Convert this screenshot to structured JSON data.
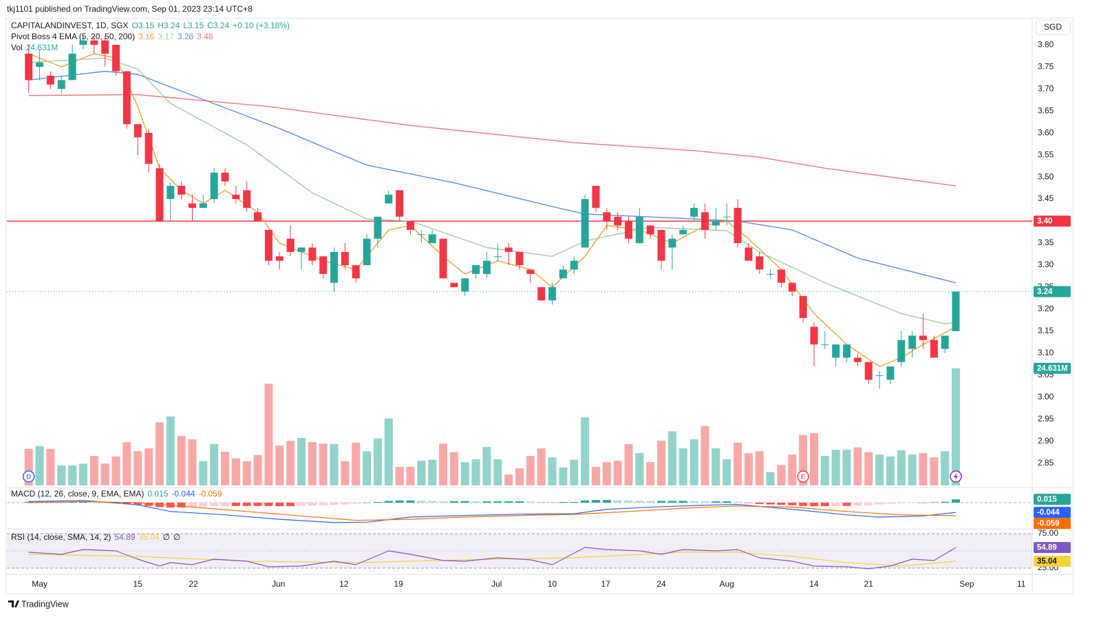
{
  "chart_data": {
    "type": "candlestick",
    "header": "tkj1101 published on TradingView.com, Sep 01, 2023 23:14 UTC+8",
    "title": "CAPITALANDINVEST, 1D, SGX",
    "ohlc_legend": [
      "O3.15",
      "H3.24",
      "L3.15",
      "C3.24",
      "+0.10 (+3.18%)"
    ],
    "currency": "SGD",
    "footer": "TradingView",
    "up_color": "#26a69a",
    "down_color": "#f23645",
    "x": [
      0,
      1,
      2,
      3,
      4,
      5,
      6,
      7,
      8,
      9,
      10,
      11,
      12,
      13,
      14,
      15,
      16,
      17,
      18,
      19,
      20,
      21,
      22,
      23,
      24,
      25,
      26,
      27,
      28,
      29,
      30,
      31,
      32,
      33,
      34,
      35,
      36,
      37,
      38,
      39,
      40,
      41,
      42,
      43,
      44,
      45,
      46,
      47,
      48,
      49,
      50,
      51,
      52,
      53,
      54,
      55,
      56,
      57,
      58,
      59,
      60,
      61,
      62,
      63,
      64,
      65,
      66,
      67,
      68,
      69,
      70,
      71,
      72,
      73,
      74,
      75,
      76,
      77,
      78,
      79,
      80,
      81,
      82,
      83,
      84,
      85
    ],
    "open": [
      3.78,
      3.75,
      3.73,
      3.7,
      3.72,
      3.8,
      3.81,
      3.81,
      3.8,
      3.74,
      3.62,
      3.6,
      3.52,
      3.45,
      3.48,
      3.44,
      3.43,
      3.45,
      3.51,
      3.46,
      3.47,
      3.42,
      3.38,
      3.32,
      3.36,
      3.33,
      3.34,
      3.32,
      3.26,
      3.33,
      3.3,
      3.3,
      3.36,
      3.44,
      3.47,
      3.4,
      3.37,
      3.35,
      3.36,
      3.26,
      3.24,
      3.28,
      3.28,
      3.32,
      3.34,
      3.33,
      3.29,
      3.25,
      3.22,
      3.27,
      3.29,
      3.34,
      3.48,
      3.42,
      3.41,
      3.4,
      3.35,
      3.39,
      3.38,
      3.34,
      3.37,
      3.41,
      3.42,
      3.39,
      3.41,
      3.43,
      3.34,
      3.32,
      3.28,
      3.29,
      3.26,
      3.23,
      3.16,
      3.12,
      3.09,
      3.09,
      3.09,
      3.08,
      3.05,
      3.04,
      3.08,
      3.11,
      3.14,
      3.13,
      3.11,
      3.15
    ],
    "high": [
      3.8,
      3.79,
      3.74,
      3.73,
      3.8,
      3.82,
      3.82,
      3.82,
      3.8,
      3.74,
      3.62,
      3.61,
      3.53,
      3.49,
      3.49,
      3.46,
      3.46,
      3.52,
      3.52,
      3.48,
      3.49,
      3.43,
      3.38,
      3.33,
      3.39,
      3.34,
      3.35,
      3.32,
      3.34,
      3.35,
      3.3,
      3.37,
      3.41,
      3.47,
      3.47,
      3.4,
      3.38,
      3.38,
      3.36,
      3.26,
      3.27,
      3.3,
      3.33,
      3.35,
      3.35,
      3.33,
      3.29,
      3.25,
      3.26,
      3.3,
      3.32,
      3.46,
      3.48,
      3.43,
      3.42,
      3.41,
      3.43,
      3.39,
      3.38,
      3.37,
      3.39,
      3.44,
      3.44,
      3.43,
      3.44,
      3.45,
      3.35,
      3.33,
      3.29,
      3.29,
      3.26,
      3.23,
      3.17,
      3.15,
      3.12,
      3.12,
      3.1,
      3.08,
      3.06,
      3.07,
      3.15,
      3.15,
      3.19,
      3.14,
      3.14,
      3.24
    ],
    "low": [
      3.69,
      3.72,
      3.7,
      3.69,
      3.72,
      3.79,
      3.78,
      3.75,
      3.73,
      3.61,
      3.55,
      3.51,
      3.4,
      3.4,
      3.45,
      3.4,
      3.43,
      3.44,
      3.48,
      3.44,
      3.42,
      3.4,
      3.3,
      3.29,
      3.32,
      3.29,
      3.3,
      3.27,
      3.24,
      3.29,
      3.26,
      3.3,
      3.34,
      3.44,
      3.4,
      3.37,
      3.35,
      3.35,
      3.27,
      3.25,
      3.23,
      3.27,
      3.27,
      3.31,
      3.3,
      3.29,
      3.26,
      3.22,
      3.21,
      3.27,
      3.28,
      3.34,
      3.42,
      3.38,
      3.38,
      3.35,
      3.35,
      3.36,
      3.29,
      3.29,
      3.37,
      3.4,
      3.36,
      3.38,
      3.39,
      3.34,
      3.31,
      3.28,
      3.27,
      3.25,
      3.23,
      3.17,
      3.07,
      3.11,
      3.07,
      3.08,
      3.07,
      3.03,
      3.02,
      3.03,
      3.07,
      3.09,
      3.11,
      3.09,
      3.1,
      3.15
    ],
    "close": [
      3.72,
      3.76,
      3.71,
      3.72,
      3.78,
      3.81,
      3.8,
      3.78,
      3.74,
      3.62,
      3.59,
      3.53,
      3.4,
      3.48,
      3.46,
      3.43,
      3.44,
      3.51,
      3.49,
      3.45,
      3.43,
      3.4,
      3.31,
      3.31,
      3.33,
      3.34,
      3.31,
      3.28,
      3.33,
      3.3,
      3.27,
      3.36,
      3.41,
      3.46,
      3.41,
      3.38,
      3.37,
      3.37,
      3.27,
      3.25,
      3.27,
      3.3,
      3.31,
      3.32,
      3.33,
      3.3,
      3.28,
      3.22,
      3.25,
      3.29,
      3.31,
      3.45,
      3.43,
      3.4,
      3.39,
      3.36,
      3.41,
      3.37,
      3.31,
      3.36,
      3.38,
      3.43,
      3.38,
      3.4,
      3.41,
      3.35,
      3.31,
      3.29,
      3.28,
      3.26,
      3.24,
      3.18,
      3.12,
      3.12,
      3.12,
      3.12,
      3.08,
      3.04,
      3.05,
      3.07,
      3.13,
      3.14,
      3.13,
      3.09,
      3.14,
      3.24
    ],
    "xlim": [
      -2,
      92
    ],
    "xticks": [
      {
        "value": 1,
        "label": "May"
      },
      {
        "value": 10,
        "label": "15"
      },
      {
        "value": 15.1,
        "label": "22"
      },
      {
        "value": 22.9,
        "label": "Jun"
      },
      {
        "value": 28.9,
        "label": "12"
      },
      {
        "value": 33.9,
        "label": "19"
      },
      {
        "value": 42.9,
        "label": "Jul"
      },
      {
        "value": 48,
        "label": "10"
      },
      {
        "value": 52.9,
        "label": "17"
      },
      {
        "value": 58,
        "label": "24"
      },
      {
        "value": 64,
        "label": "Aug"
      },
      {
        "value": 72,
        "label": "14"
      },
      {
        "value": 77,
        "label": "21"
      },
      {
        "value": 86,
        "label": "Sep"
      },
      {
        "value": 91,
        "label": "11"
      }
    ],
    "ylim": [
      2.8,
      3.858
    ],
    "yticks": [
      {
        "value": 2.85,
        "label": "2.85"
      },
      {
        "value": 2.9,
        "label": "2.90"
      },
      {
        "value": 2.95,
        "label": "2.95"
      },
      {
        "value": 3,
        "label": "3.00"
      },
      {
        "value": 3.05,
        "label": "3.05"
      },
      {
        "value": 3.1,
        "label": "3.10"
      },
      {
        "value": 3.15,
        "label": "3.15"
      },
      {
        "value": 3.2,
        "label": "3.20"
      },
      {
        "value": 3.25,
        "label": "3.25"
      },
      {
        "value": 3.3,
        "label": "3.30"
      },
      {
        "value": 3.35,
        "label": "3.35"
      },
      {
        "value": 3.4,
        "label": "3.40"
      },
      {
        "value": 3.45,
        "label": "3.45"
      },
      {
        "value": 3.5,
        "label": "3.50"
      },
      {
        "value": 3.55,
        "label": "3.55"
      },
      {
        "value": 3.6,
        "label": "3.60"
      },
      {
        "value": 3.65,
        "label": "3.65"
      },
      {
        "value": 3.7,
        "label": "3.70"
      },
      {
        "value": 3.75,
        "label": "3.75"
      },
      {
        "value": 3.8,
        "label": "3.80"
      }
    ],
    "hline": {
      "value": 3.4,
      "label": "3.40",
      "color": "#f23645"
    },
    "indicator": {
      "name": "Pivot Boss 4 EMA (5, 20, 50, 200)",
      "series": [
        {
          "color": "#f5a031",
          "x": [
            0,
            3,
            6,
            8,
            10,
            12,
            14,
            16,
            18,
            21,
            23,
            27,
            30,
            33,
            35,
            38,
            40,
            43,
            46,
            48,
            51,
            53,
            56,
            59,
            62,
            64,
            66,
            69,
            72,
            75,
            78,
            80,
            82,
            85
          ],
          "values": [
            3.78,
            3.75,
            3.78,
            3.77,
            3.66,
            3.52,
            3.47,
            3.44,
            3.47,
            3.42,
            3.35,
            3.31,
            3.29,
            3.38,
            3.39,
            3.32,
            3.28,
            3.31,
            3.29,
            3.25,
            3.32,
            3.39,
            3.38,
            3.35,
            3.39,
            3.4,
            3.36,
            3.29,
            3.19,
            3.12,
            3.07,
            3.09,
            3.12,
            3.16
          ]
        },
        {
          "color": "#9ccf9e",
          "x": [
            0,
            7,
            10,
            13,
            20,
            26,
            31,
            35,
            42,
            48,
            51,
            57,
            64,
            67,
            73,
            80,
            84,
            85
          ],
          "values": [
            3.76,
            3.77,
            3.745,
            3.667,
            3.573,
            3.464,
            3.405,
            3.4,
            3.34,
            3.32,
            3.355,
            3.386,
            3.378,
            3.33,
            3.26,
            3.19,
            3.167,
            3.17
          ]
        },
        {
          "color": "#5b8def",
          "x": [
            0,
            7,
            10,
            16,
            23,
            31,
            39,
            48,
            51,
            61,
            65,
            70,
            76,
            85
          ],
          "values": [
            3.72,
            3.74,
            3.733,
            3.676,
            3.61,
            3.527,
            3.487,
            3.433,
            3.416,
            3.405,
            3.4,
            3.38,
            3.316,
            3.26
          ]
        },
        {
          "color": "#f07878",
          "x": [
            0,
            10,
            22,
            35,
            50,
            61,
            67,
            73,
            85
          ],
          "values": [
            3.685,
            3.687,
            3.66,
            3.617,
            3.578,
            3.56,
            3.545,
            3.52,
            3.48
          ]
        }
      ]
    },
    "volume": {
      "name": "Vol",
      "last_label": "24.631M",
      "ylim": [
        0,
        36.2
      ],
      "up_color": "#92d3cc",
      "down_color": "#f8a9a7",
      "values": [
        7.7,
        8.3,
        7.7,
        4.2,
        4.2,
        4.6,
        6.2,
        4.6,
        6.1,
        9.1,
        7.2,
        7.8,
        13.3,
        14.5,
        10.4,
        9.7,
        5.1,
        8.7,
        7.1,
        5.7,
        5.1,
        6.4,
        21.4,
        8.4,
        9.4,
        10,
        9.1,
        8.8,
        8.7,
        5.1,
        9,
        7.2,
        9.9,
        14.1,
        3.9,
        3.9,
        5.2,
        5.4,
        8.8,
        7,
        4.9,
        5.5,
        8.1,
        5.5,
        2.3,
        3.6,
        6.2,
        7.8,
        5.9,
        3.8,
        5.4,
        14.3,
        3.9,
        4.9,
        5.2,
        8.7,
        6.8,
        4.9,
        9.4,
        11.4,
        7.8,
        9.7,
        12.5,
        7.8,
        5.5,
        9,
        6.8,
        7.2,
        2.8,
        4.3,
        6.5,
        10.6,
        11,
        6.2,
        7.5,
        7.5,
        8,
        7,
        6.5,
        6.1,
        7.4,
        6.5,
        6.8,
        5.9,
        7.2,
        24.631
      ]
    },
    "events": [
      {
        "x": 0,
        "label": "D"
      },
      {
        "x": 71,
        "label": "E"
      }
    ],
    "macd": {
      "title": "MACD (12, 26, close, 9, EMA, EMA)",
      "ylim": [
        -0.109,
        0.056
      ],
      "histogram": {
        "color": "#26a69a",
        "values": [
          0.004,
          0.004,
          0.004,
          0.004,
          0.004,
          0.004,
          0.002,
          0,
          -0.003,
          -0.006,
          -0.01,
          -0.015,
          -0.02,
          -0.022,
          -0.022,
          -0.02,
          -0.018,
          -0.016,
          -0.015,
          -0.015,
          -0.015,
          -0.015,
          -0.015,
          -0.016,
          -0.016,
          -0.015,
          -0.013,
          -0.012,
          -0.01,
          -0.008,
          -0.005,
          0,
          0.003,
          0.008,
          0.01,
          0.01,
          0.009,
          0.008,
          0.006,
          0.007,
          0.007,
          0.006,
          0.006,
          0.006,
          0.006,
          0.006,
          0.005,
          0.004,
          0.003,
          0.003,
          0.003,
          0.01,
          0.012,
          0.012,
          0.011,
          0.01,
          0.009,
          0.008,
          0.008,
          0.008,
          0.008,
          0.007,
          0.006,
          0.006,
          0.006,
          0.004,
          -0.002,
          -0.006,
          -0.008,
          -0.01,
          -0.012,
          -0.015,
          -0.016,
          -0.016,
          -0.015,
          -0.015,
          -0.014,
          -0.012,
          -0.008,
          -0.006,
          -0.003,
          -0.001,
          0,
          0.002,
          0.004,
          0.015
        ]
      },
      "macd": {
        "color": "#2962ff",
        "x": [
          0,
          5,
          10,
          13,
          18,
          23,
          28,
          31,
          35,
          40,
          45,
          50,
          53,
          58,
          63,
          65,
          70,
          75,
          78,
          82,
          85
        ],
        "values": [
          0.005,
          0.01,
          -0.01,
          -0.04,
          -0.055,
          -0.075,
          -0.09,
          -0.088,
          -0.065,
          -0.058,
          -0.052,
          -0.05,
          -0.03,
          -0.018,
          -0.01,
          -0.008,
          -0.03,
          -0.055,
          -0.065,
          -0.06,
          -0.044
        ]
      },
      "signal": {
        "color": "#ff6d00",
        "x": [
          0,
          5,
          10,
          15,
          20,
          25,
          30,
          35,
          40,
          45,
          50,
          55,
          60,
          65,
          70,
          75,
          80,
          85
        ],
        "values": [
          0,
          0.005,
          0,
          -0.02,
          -0.04,
          -0.06,
          -0.08,
          -0.075,
          -0.065,
          -0.058,
          -0.053,
          -0.04,
          -0.025,
          -0.015,
          -0.02,
          -0.04,
          -0.055,
          -0.059
        ]
      }
    },
    "rsi": {
      "title": "RSI (14, close, SMA, 14, 2)",
      "ylim": [
        20,
        80
      ],
      "yticks": [
        {
          "value": 75,
          "label": "75.00"
        },
        {
          "value": 50,
          "label": "50.00"
        },
        {
          "value": 25,
          "label": "25.00"
        }
      ],
      "rsi": {
        "color": "#7e57c2",
        "x": [
          0,
          3,
          5,
          8,
          10,
          12,
          13,
          15,
          17,
          20,
          22,
          25,
          28,
          30,
          33,
          35,
          38,
          40,
          43,
          46,
          48,
          51,
          53,
          56,
          58,
          60,
          63,
          65,
          67,
          70,
          72,
          75,
          77,
          79,
          81,
          83,
          85
        ],
        "values": [
          48,
          45,
          52,
          50,
          38,
          28,
          33,
          30,
          38,
          35,
          27,
          28,
          35,
          30,
          50,
          45,
          36,
          35,
          40,
          37,
          30,
          55,
          52,
          50,
          45,
          52,
          50,
          52,
          40,
          35,
          28,
          27,
          24,
          28,
          38,
          36,
          54.89
        ]
      },
      "ma": {
        "color": "#f5d33b",
        "x": [
          0,
          10,
          20,
          30,
          40,
          50,
          60,
          65,
          70,
          75,
          80,
          85
        ],
        "values": [
          45,
          42,
          35,
          33,
          37,
          40,
          48,
          48,
          42,
          33,
          28,
          35.04
        ]
      },
      "extra": [
        "∅",
        "∅"
      ]
    }
  }
}
